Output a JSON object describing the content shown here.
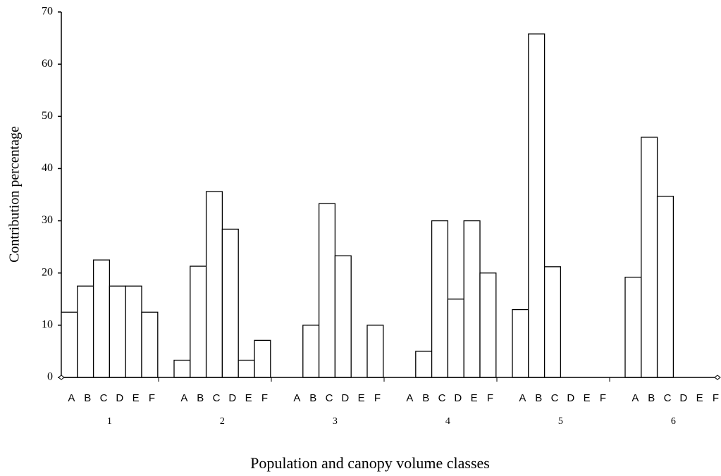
{
  "chart_data": {
    "type": "bar",
    "x_label": "Population and canopy volume classes",
    "y_label": "Contribution percentage",
    "groups": [
      "1",
      "2",
      "3",
      "4",
      "5",
      "6"
    ],
    "subcategories": [
      "A",
      "B",
      "C",
      "D",
      "E",
      "F"
    ],
    "values": [
      [
        12.5,
        17.5,
        22.5,
        17.5,
        17.5,
        12.5
      ],
      [
        3.3,
        21.3,
        35.6,
        28.4,
        3.3,
        7.1
      ],
      [
        0,
        10,
        33.3,
        23.3,
        0,
        10
      ],
      [
        0,
        5,
        30,
        15,
        30,
        20
      ],
      [
        13,
        65.8,
        21.2,
        0,
        0,
        0
      ],
      [
        19.2,
        46,
        34.7,
        0,
        0,
        0
      ]
    ],
    "color": "#ffffff",
    "ylim": [
      0,
      70
    ],
    "yticks": [
      0,
      10,
      20,
      30,
      40,
      50,
      60,
      70
    ]
  }
}
